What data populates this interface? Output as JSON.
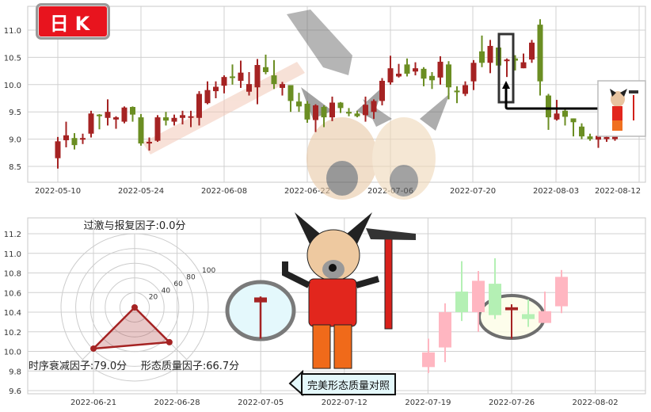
{
  "badge": {
    "label": "日K",
    "color": "#e8141e"
  },
  "colors": {
    "up": "#a52323",
    "down": "#6b8e23",
    "up_faded": "#ffb6c1",
    "down_faded": "#b4f0b4"
  },
  "compare_label": "完美形态质量对照",
  "chart_data": [
    {
      "type": "bar",
      "style": "candlestick",
      "title": "",
      "xlabel": "",
      "ylabel": "",
      "ylim": [
        8.2,
        11.4
      ],
      "yticks": [
        "11.0",
        "10.5",
        "10.0",
        "9.5",
        "9.0",
        "8.5"
      ],
      "xticks": [
        "2022-05-10",
        "2022-05-24",
        "2022-06-08",
        "2022-06-22",
        "2022-07-06",
        "2022-07-20",
        "2022-08-03",
        "2022-08-12"
      ],
      "grid": true,
      "ohlc": [
        [
          8.65,
          9.04,
          8.46,
          8.96
        ],
        [
          8.98,
          9.32,
          8.85,
          9.07
        ],
        [
          9.02,
          9.11,
          8.81,
          8.89
        ],
        [
          8.99,
          9.1,
          8.91,
          9.02
        ],
        [
          9.1,
          9.52,
          9.03,
          9.47
        ],
        [
          9.45,
          9.46,
          9.18,
          9.43
        ],
        [
          9.39,
          9.73,
          9.25,
          9.5
        ],
        [
          9.36,
          9.42,
          9.19,
          9.4
        ],
        [
          9.32,
          9.6,
          9.29,
          9.58
        ],
        [
          9.59,
          9.6,
          9.32,
          9.45
        ],
        [
          9.4,
          9.46,
          8.88,
          8.92
        ],
        [
          8.92,
          9.03,
          8.79,
          8.95
        ],
        [
          8.97,
          9.44,
          8.95,
          9.4
        ],
        [
          9.4,
          9.5,
          9.25,
          9.34
        ],
        [
          9.32,
          9.45,
          9.25,
          9.39
        ],
        [
          9.39,
          9.52,
          9.27,
          9.44
        ],
        [
          9.4,
          9.52,
          9.22,
          9.42
        ],
        [
          9.39,
          9.88,
          9.25,
          9.83
        ],
        [
          9.66,
          10.06,
          9.64,
          9.9
        ],
        [
          9.88,
          10.06,
          9.75,
          9.96
        ],
        [
          9.98,
          10.17,
          9.84,
          10.14
        ],
        [
          10.15,
          10.37,
          10.0,
          10.13
        ],
        [
          10.07,
          10.44,
          9.94,
          10.22
        ],
        [
          9.87,
          10.23,
          9.8,
          10.01
        ],
        [
          9.95,
          10.47,
          9.64,
          10.36
        ],
        [
          10.32,
          10.55,
          10.19,
          10.23
        ],
        [
          10.17,
          10.45,
          9.92,
          10.01
        ],
        [
          9.94,
          10.05,
          9.8,
          10.01
        ],
        [
          9.99,
          9.99,
          9.5,
          9.7
        ],
        [
          9.69,
          9.85,
          9.5,
          9.6
        ],
        [
          9.65,
          9.7,
          9.3,
          9.36
        ],
        [
          9.35,
          9.64,
          9.13,
          9.62
        ],
        [
          9.59,
          9.62,
          9.22,
          9.4
        ],
        [
          9.4,
          9.78,
          9.33,
          9.67
        ],
        [
          9.67,
          9.68,
          9.48,
          9.57
        ],
        [
          9.5,
          9.57,
          9.42,
          9.47
        ],
        [
          9.47,
          9.52,
          9.4,
          9.42
        ],
        [
          9.44,
          9.78,
          9.32,
          9.63
        ],
        [
          9.5,
          9.73,
          9.37,
          9.7
        ],
        [
          9.7,
          10.12,
          9.62,
          10.07
        ],
        [
          10.04,
          10.53,
          10.0,
          10.3
        ],
        [
          10.15,
          10.38,
          10.13,
          10.2
        ],
        [
          10.37,
          10.48,
          10.15,
          10.2
        ],
        [
          10.24,
          10.41,
          10.17,
          10.3
        ],
        [
          10.29,
          10.32,
          9.97,
          10.11
        ],
        [
          10.16,
          10.23,
          9.92,
          10.08
        ],
        [
          10.13,
          10.52,
          10.0,
          10.42
        ],
        [
          10.37,
          10.43,
          9.73,
          9.95
        ],
        [
          9.89,
          9.97,
          9.66,
          9.86
        ],
        [
          9.83,
          10.06,
          9.79,
          9.99
        ],
        [
          10.06,
          10.45,
          9.9,
          10.4
        ],
        [
          10.61,
          10.9,
          10.32,
          10.4
        ],
        [
          10.4,
          10.82,
          10.21,
          10.71
        ],
        [
          10.68,
          10.95,
          10.33,
          10.35
        ],
        [
          10.43,
          10.48,
          10.14,
          10.46
        ],
        [
          10.48,
          10.54,
          10.26,
          10.44
        ],
        [
          10.3,
          10.57,
          10.3,
          10.41
        ],
        [
          10.46,
          10.82,
          10.4,
          10.77
        ],
        [
          11.1,
          11.2,
          9.8,
          10.06
        ],
        [
          9.8,
          9.83,
          9.17,
          9.4
        ],
        [
          9.36,
          9.72,
          9.34,
          9.47
        ],
        [
          9.52,
          9.55,
          9.25,
          9.41
        ],
        [
          9.38,
          9.38,
          9.05,
          9.31
        ],
        [
          9.23,
          9.29,
          9.0,
          9.05
        ],
        [
          9.05,
          9.1,
          8.97,
          9.0
        ],
        [
          8.99,
          9.07,
          8.84,
          9.06
        ],
        [
          9.0,
          9.08,
          8.95,
          9.04
        ],
        [
          9.0,
          9.05,
          8.97,
          9.05
        ]
      ],
      "highlight_index": 54
    },
    {
      "type": "radar",
      "axes": [
        {
          "label": "过激与报复因子:0.0分",
          "value": 0.0
        },
        {
          "label": "时序衰减因子:79.0分",
          "value": 79.0
        },
        {
          "label": "形态质量因子:66.7分",
          "value": 66.7
        }
      ],
      "rings": [
        "20",
        "40",
        "60",
        "80",
        "100"
      ],
      "rlim": [
        0,
        100
      ],
      "color": "#a52323"
    },
    {
      "type": "bar",
      "style": "candlestick",
      "title": "",
      "ylim": [
        9.55,
        11.3
      ],
      "yticks": [
        "11.2",
        "11.0",
        "10.8",
        "10.6",
        "10.4",
        "10.2",
        "10.0",
        "9.8",
        "9.6"
      ],
      "xticks": [
        "2022-06-21",
        "2022-06-28",
        "2022-07-05",
        "2022-07-12",
        "2022-07-19",
        "2022-07-26",
        "2022-08-02"
      ],
      "grid": true,
      "reference_candle": [
        10.5,
        10.56,
        10.13,
        10.55
      ],
      "ohlc": [
        [
          9.84,
          10.13,
          9.78,
          9.99
        ],
        [
          10.04,
          10.49,
          9.89,
          10.4
        ],
        [
          10.61,
          10.92,
          10.31,
          10.4
        ],
        [
          10.4,
          10.82,
          10.2,
          10.72
        ],
        [
          10.69,
          10.95,
          10.33,
          10.37
        ],
        [
          10.42,
          10.48,
          10.13,
          10.45
        ],
        [
          10.38,
          10.53,
          10.25,
          10.33
        ],
        [
          10.29,
          10.61,
          10.29,
          10.41
        ],
        [
          10.46,
          10.83,
          10.39,
          10.76
        ]
      ],
      "highlight_index": 5
    }
  ]
}
